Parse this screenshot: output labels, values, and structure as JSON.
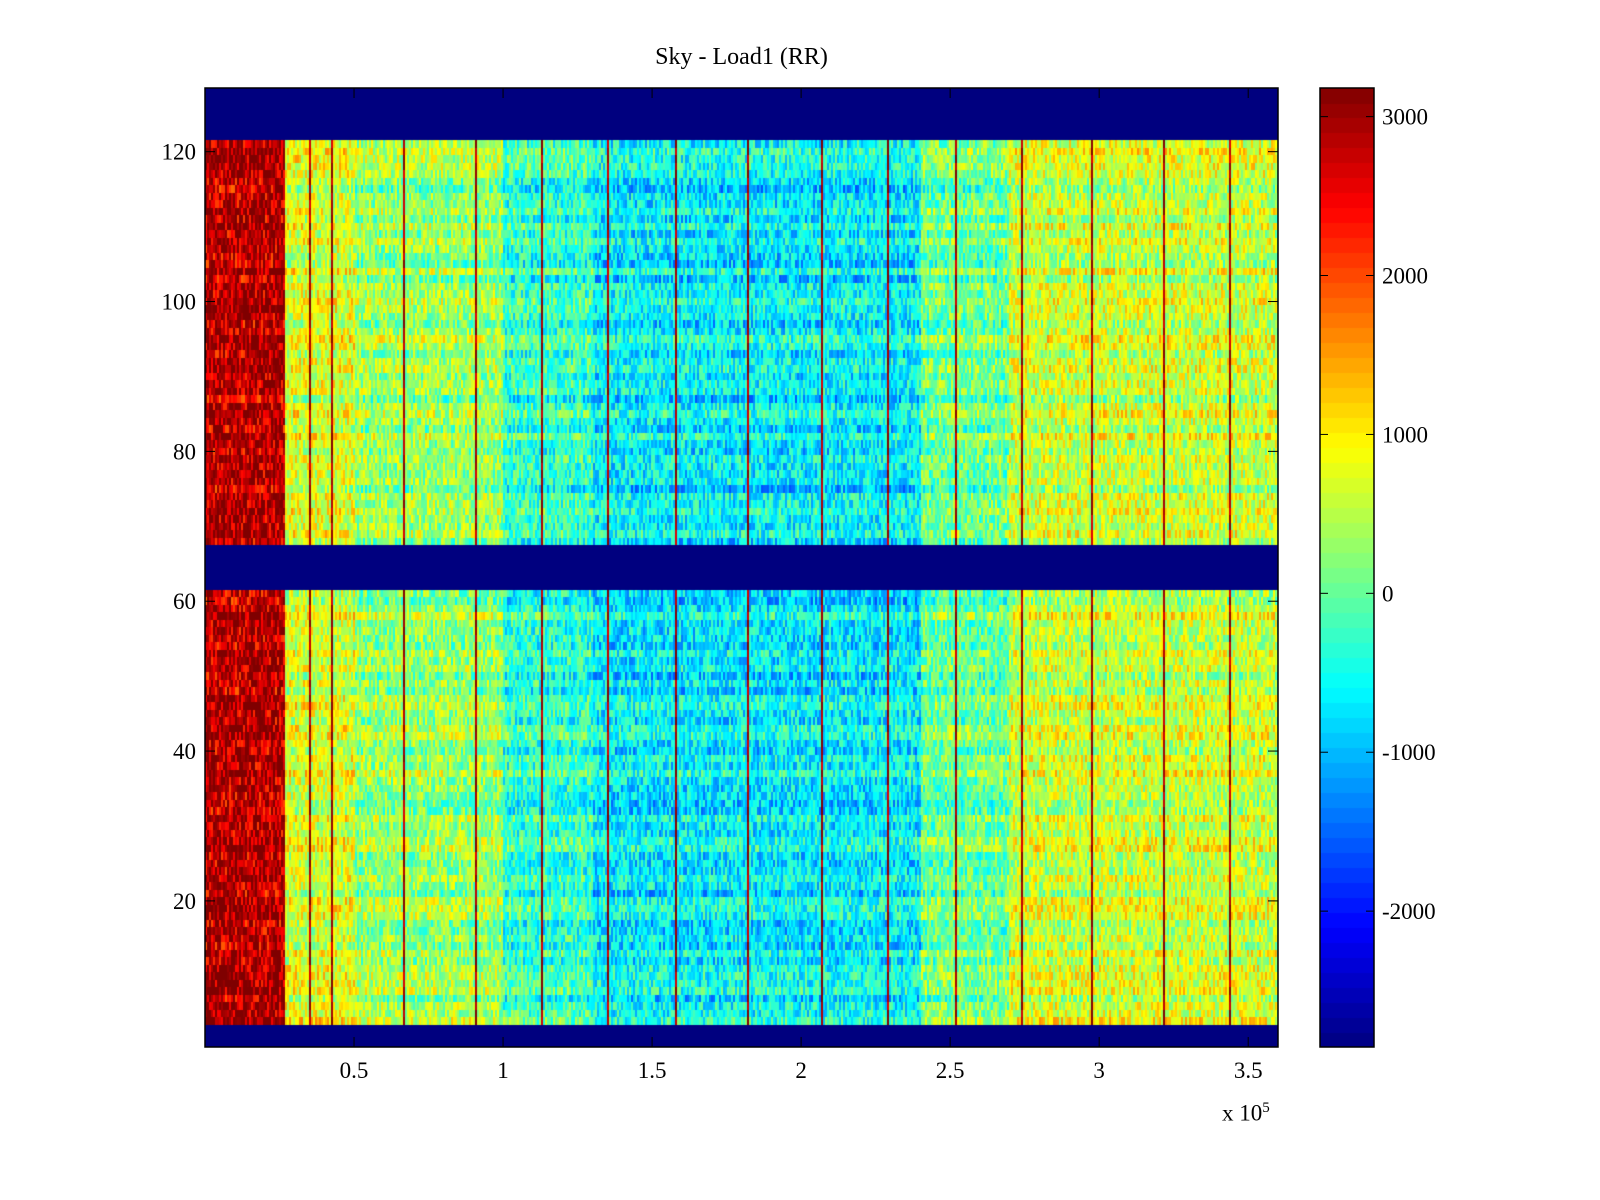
{
  "chart_data": {
    "type": "heatmap",
    "title": "Sky - Load1 (RR)",
    "xlabel": "",
    "ylabel": "",
    "x_multiplier_label": "x 10",
    "x_multiplier_exponent": "5",
    "xlim": [
      0,
      360000
    ],
    "ylim": [
      0.5,
      128.5
    ],
    "xticks": [
      50000,
      100000,
      150000,
      200000,
      250000,
      300000,
      350000
    ],
    "xtick_labels": [
      "0.5",
      "1",
      "1.5",
      "2",
      "2.5",
      "3",
      "3.5"
    ],
    "yticks": [
      20,
      40,
      60,
      80,
      100,
      120
    ],
    "ytick_labels": [
      "20",
      "40",
      "60",
      "80",
      "100",
      "120"
    ],
    "colormap": "jet",
    "clim": [
      -2855,
      3180
    ],
    "colorbar_ticks": [
      3000,
      2000,
      1000,
      0,
      -1000,
      -2000
    ],
    "colorbar_tick_labels": [
      "3000",
      "2000",
      "1000",
      "0",
      "-1000",
      "-2000"
    ],
    "empty_rows": [
      [
        1,
        3
      ],
      [
        62,
        67
      ],
      [
        122,
        128
      ]
    ],
    "column_mean_profile": [
      {
        "x_start": 0,
        "x_end": 27000,
        "value": 2700
      },
      {
        "x_start": 27000,
        "x_end": 50000,
        "value": 700
      },
      {
        "x_start": 50000,
        "x_end": 100000,
        "value": 300
      },
      {
        "x_start": 100000,
        "x_end": 130000,
        "value": -300
      },
      {
        "x_start": 130000,
        "x_end": 240000,
        "value": -650
      },
      {
        "x_start": 240000,
        "x_end": 270000,
        "value": 50
      },
      {
        "x_start": 270000,
        "x_end": 360000,
        "value": 600
      }
    ],
    "spike_columns_x": [
      35200,
      42000,
      66400,
      90300,
      112800,
      135200,
      158000,
      181900,
      206400,
      228500,
      251300,
      273500,
      297300,
      321100,
      343300
    ],
    "spike_value": 3000
  }
}
